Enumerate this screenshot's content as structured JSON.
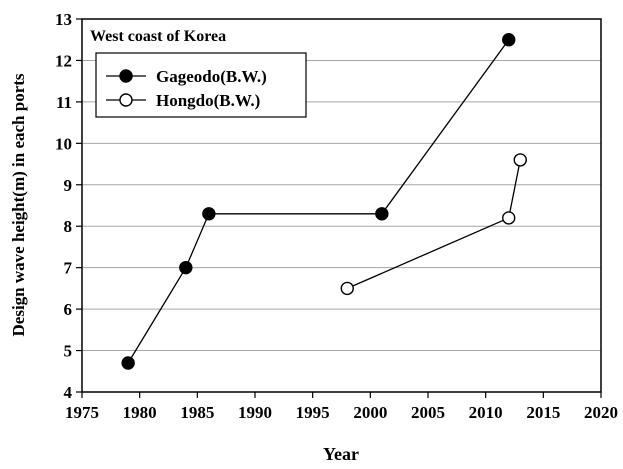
{
  "chart_data": {
    "type": "line",
    "title": "West coast of Korea",
    "xlabel": "Year",
    "ylabel": "Design wave height(m) in each ports",
    "xlim": [
      1975,
      2020
    ],
    "ylim": [
      4,
      13
    ],
    "x_ticks": [
      "1975",
      "1980",
      "1985",
      "1990",
      "1995",
      "2000",
      "2005",
      "2010",
      "2015",
      "2020"
    ],
    "y_ticks": [
      "4",
      "5",
      "6",
      "7",
      "8",
      "9",
      "10",
      "11",
      "12",
      "13"
    ],
    "grid": "horizontal",
    "legend_position": "top-left",
    "series": [
      {
        "name": "Gageodo(B.W.)",
        "marker": "filled-circle",
        "x": [
          1979,
          1984,
          1986,
          2001,
          2012
        ],
        "y": [
          4.7,
          7.0,
          8.3,
          8.3,
          12.5
        ]
      },
      {
        "name": "Hongdo(B.W.)",
        "marker": "open-circle",
        "x": [
          1998,
          2012,
          2013
        ],
        "y": [
          6.5,
          8.2,
          9.6
        ]
      }
    ]
  }
}
